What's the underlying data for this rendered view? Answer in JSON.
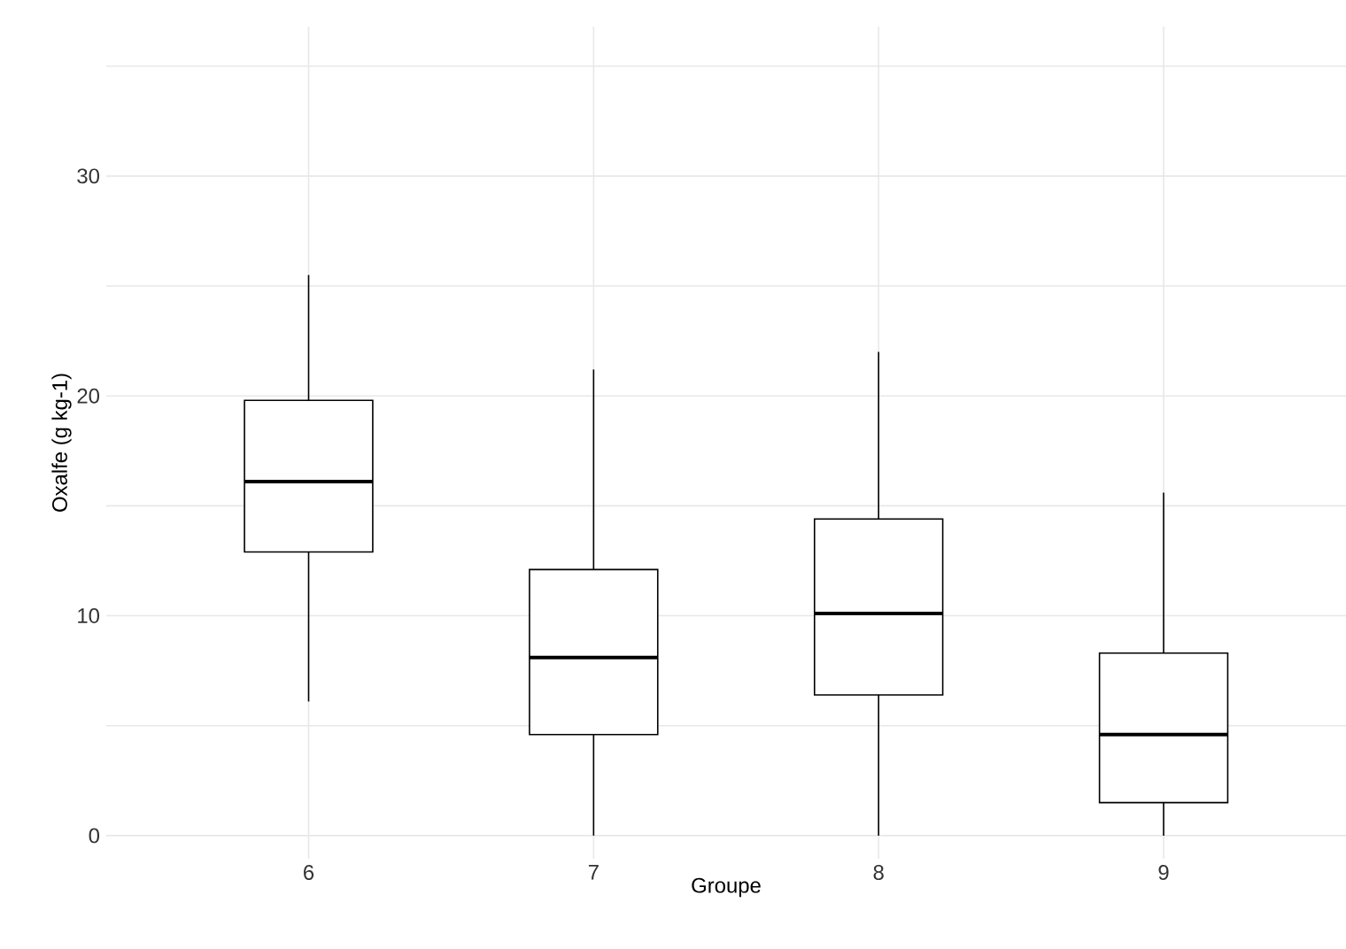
{
  "chart_data": {
    "type": "box",
    "xlabel": "Groupe",
    "ylabel": "Oxalfe (g kg-1)",
    "categories": [
      "6",
      "7",
      "8",
      "9"
    ],
    "boxes": [
      {
        "low": 6.1,
        "q1": 12.9,
        "median": 16.1,
        "q3": 19.8,
        "high": 25.5
      },
      {
        "low": 0,
        "q1": 4.6,
        "median": 8.1,
        "q3": 12.1,
        "high": 21.2
      },
      {
        "low": 0,
        "q1": 6.4,
        "median": 10.1,
        "q3": 14.4,
        "high": 22.0
      },
      {
        "low": 0,
        "q1": 1.5,
        "median": 4.6,
        "q3": 8.3,
        "high": 15.6
      }
    ],
    "ylim": [
      -1.05,
      36.8
    ],
    "yticks": [
      0,
      {
        "value": 5,
        "label": null
      },
      10,
      {
        "value": 15,
        "label": null
      },
      20,
      {
        "value": 25,
        "label": null
      },
      30,
      {
        "value": 35,
        "label": null
      }
    ],
    "grid": true
  }
}
